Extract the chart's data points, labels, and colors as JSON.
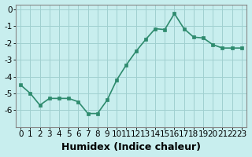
{
  "x": [
    0,
    1,
    2,
    3,
    4,
    5,
    6,
    7,
    8,
    9,
    10,
    11,
    12,
    13,
    14,
    15,
    16,
    17,
    18,
    19,
    20,
    21,
    22,
    23
  ],
  "y": [
    -4.5,
    -5.0,
    -5.7,
    -5.3,
    -5.3,
    -5.3,
    -5.5,
    -6.2,
    -6.2,
    -5.4,
    -4.2,
    -3.3,
    -2.5,
    -1.8,
    -1.15,
    -1.2,
    -0.25,
    -1.15,
    -1.65,
    -1.7,
    -2.1,
    -2.3,
    -2.3,
    -2.3
  ],
  "xlabel": "Humidex (Indice chaleur)",
  "line_color": "#2e8b6e",
  "marker_color": "#2e8b6e",
  "bg_color": "#c8eeee",
  "grid_color": "#a0d0d0",
  "xlim": [
    -0.5,
    23.5
  ],
  "ylim": [
    -7.0,
    0.3
  ],
  "yticks": [
    0,
    -1,
    -2,
    -3,
    -4,
    -5,
    -6
  ],
  "xlabel_fontsize": 9,
  "tick_fontsize": 7.5,
  "line_width": 1.2,
  "marker_size": 3.0
}
